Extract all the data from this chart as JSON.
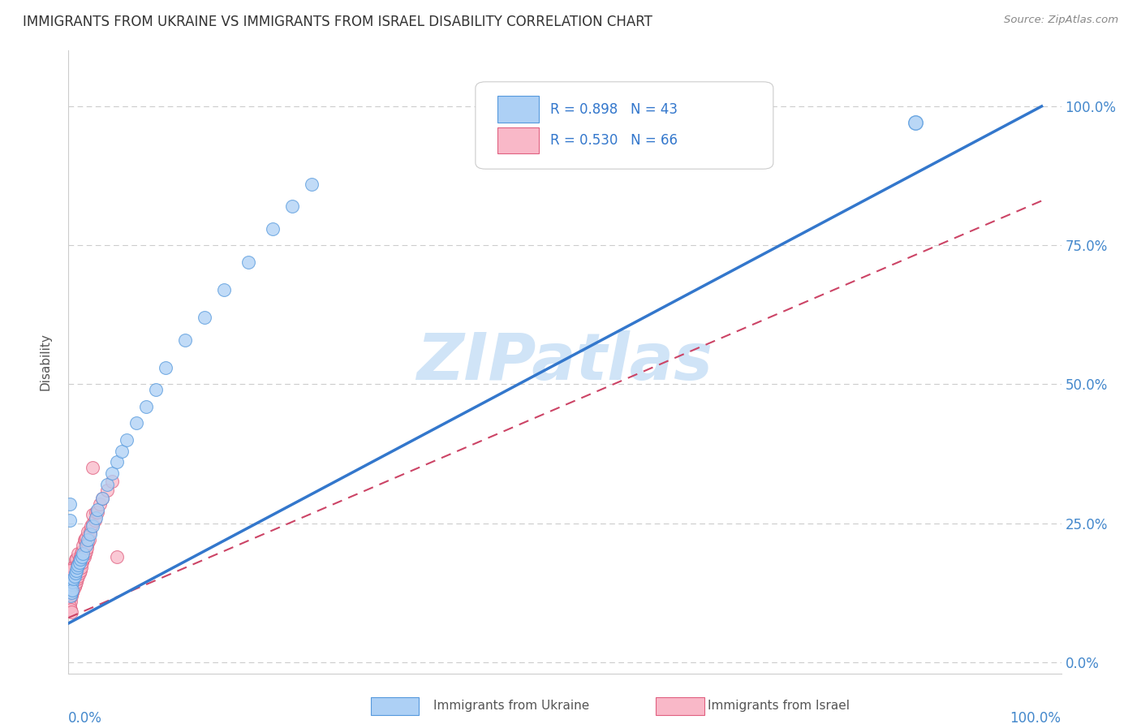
{
  "title": "IMMIGRANTS FROM UKRAINE VS IMMIGRANTS FROM ISRAEL DISABILITY CORRELATION CHART",
  "source": "Source: ZipAtlas.com",
  "ylabel": "Disability",
  "ukraine_R": 0.898,
  "ukraine_N": 43,
  "israel_R": 0.53,
  "israel_N": 66,
  "ukraine_color": "#add0f5",
  "ukraine_edge_color": "#5599dd",
  "ukraine_line_color": "#3377cc",
  "israel_color": "#f9b8c8",
  "israel_edge_color": "#e06080",
  "israel_line_color": "#cc4466",
  "watermark": "ZIPatlas",
  "watermark_color": "#d0e4f7",
  "grid_color": "#cccccc",
  "ytick_values": [
    0.0,
    0.25,
    0.5,
    0.75,
    1.0
  ],
  "background": "#ffffff",
  "title_color": "#333333",
  "source_color": "#888888",
  "tick_color": "#4488cc",
  "legend_border": "#cccccc",
  "axis_color": "#cccccc"
}
